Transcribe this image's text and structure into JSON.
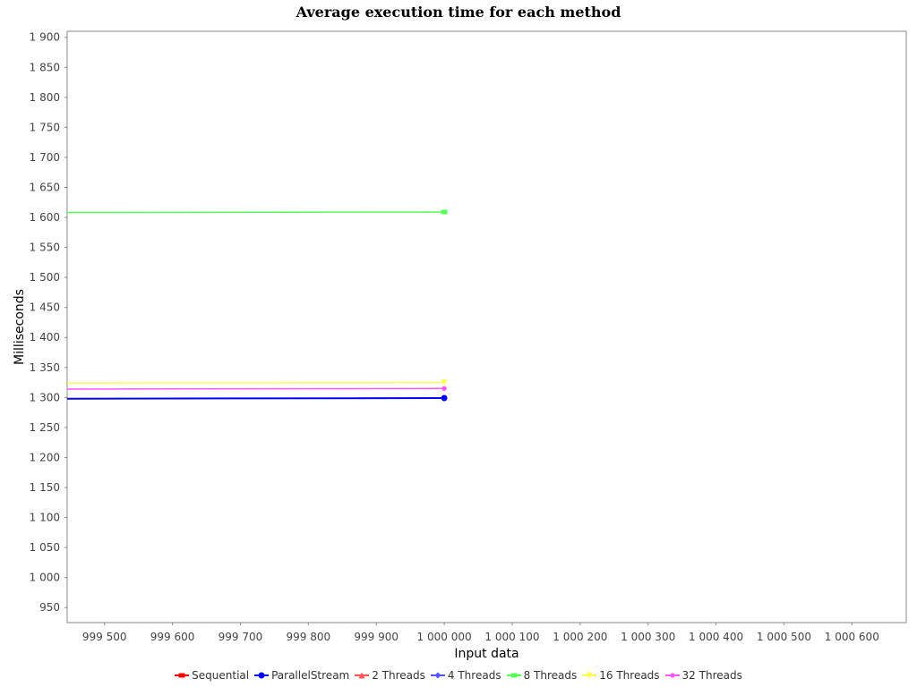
{
  "chart_data": {
    "type": "line",
    "title": "Average execution time for each method",
    "xlabel": "Input data",
    "ylabel": "Milliseconds",
    "xlim": [
      999445,
      1000680
    ],
    "ylim": [
      925,
      1910
    ],
    "grid": false,
    "legend_position": "bottom",
    "x_ticks": [
      999500,
      999600,
      999700,
      999800,
      999900,
      1000000,
      1000100,
      1000200,
      1000300,
      1000400,
      1000500,
      1000600
    ],
    "x_tick_labels": [
      "999 500",
      "999 600",
      "999 700",
      "999 800",
      "999 900",
      "1 000 000",
      "1 000 100",
      "1 000 200",
      "1 000 300",
      "1 000 400",
      "1 000 500",
      "1 000 600"
    ],
    "y_ticks": [
      950,
      1000,
      1050,
      1100,
      1150,
      1200,
      1250,
      1300,
      1350,
      1400,
      1450,
      1500,
      1550,
      1600,
      1650,
      1700,
      1750,
      1800,
      1850,
      1900
    ],
    "y_tick_labels": [
      "950",
      "1 000",
      "1 050",
      "1 100",
      "1 150",
      "1 200",
      "1 250",
      "1 300",
      "1 350",
      "1 400",
      "1 450",
      "1 500",
      "1 550",
      "1 600",
      "1 650",
      "1 700",
      "1 750",
      "1 800",
      "1 850",
      "1 900"
    ],
    "series": [
      {
        "name": "Sequential",
        "color": "#ff0000",
        "marker": "square",
        "x": [
          999445,
          1000000
        ],
        "y": [
          null,
          null
        ]
      },
      {
        "name": "ParallelStream",
        "color": "#0000ff",
        "marker": "circle",
        "x": [
          999445,
          1000000
        ],
        "y": [
          1298,
          1299
        ]
      },
      {
        "name": "2 Threads",
        "color": "#ff5555",
        "marker": "triangle",
        "x": [
          999445,
          1000000
        ],
        "y": [
          null,
          null
        ]
      },
      {
        "name": "4 Threads",
        "color": "#5555ff",
        "marker": "diamond",
        "x": [
          999445,
          1000000
        ],
        "y": [
          null,
          null
        ]
      },
      {
        "name": "8 Threads",
        "color": "#55ff55",
        "marker": "square",
        "x": [
          999445,
          1000000
        ],
        "y": [
          1608,
          1609
        ]
      },
      {
        "name": "16 Threads",
        "color": "#ffff55",
        "marker": "triangle-down",
        "x": [
          999445,
          1000000
        ],
        "y": [
          1324,
          1325
        ]
      },
      {
        "name": "32 Threads",
        "color": "#ff55ff",
        "marker": "circle-small",
        "x": [
          999445,
          1000000
        ],
        "y": [
          1314,
          1315
        ]
      }
    ]
  }
}
